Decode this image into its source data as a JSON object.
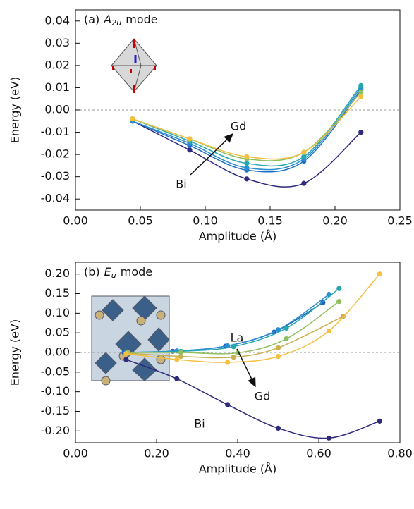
{
  "chart_data": [
    {
      "type": "line",
      "panel": "(a)",
      "mode": "A",
      "mode_sub": "2u",
      "mode_word": "mode",
      "xlabel": "Amplitude (Å)",
      "ylabel": "Energy (eV)",
      "xlim": [
        0,
        0.25
      ],
      "ylim": [
        -0.045,
        0.045
      ],
      "xticks": [
        {
          "value": 0,
          "label": "0.00"
        },
        0.05,
        {
          "value": 0.1,
          "label": "0.10"
        },
        0.15,
        {
          "value": 0.2,
          "label": "0.20"
        },
        0.25
      ],
      "yticks": [
        {
          "value": -0.04,
          "label": "-0.04"
        },
        {
          "value": -0.03,
          "label": "-0.03"
        },
        {
          "value": -0.02,
          "label": "-0.02"
        },
        {
          "value": -0.01,
          "label": "-0.01"
        },
        {
          "value": 0,
          "label": "0.00"
        },
        0.01,
        0.02,
        0.03,
        0.04
      ],
      "zero_line": true,
      "series": [
        {
          "color": "#2e2a7c",
          "x": [
            0.044,
            0.088,
            0.132,
            0.176,
            0.22
          ],
          "values": [
            -0.005,
            -0.018,
            -0.031,
            -0.033,
            -0.01
          ]
        },
        {
          "color": "#1f6fc8",
          "x": [
            0.044,
            0.088,
            0.132,
            0.176,
            0.22
          ],
          "values": [
            -0.005,
            -0.016,
            -0.027,
            -0.023,
            0.009
          ]
        },
        {
          "color": "#2a8fd0",
          "x": [
            0.044,
            0.088,
            0.132,
            0.176,
            0.22
          ],
          "values": [
            -0.005,
            -0.015,
            -0.026,
            -0.022,
            0.01
          ]
        },
        {
          "color": "#26a7b0",
          "x": [
            0.044,
            0.088,
            0.132,
            0.176,
            0.22
          ],
          "values": [
            -0.004,
            -0.014,
            -0.024,
            -0.021,
            0.011
          ]
        },
        {
          "color": "#8fbf60",
          "x": [
            0.044,
            0.088,
            0.132,
            0.176,
            0.22
          ],
          "values": [
            -0.004,
            -0.013,
            -0.022,
            -0.019,
            0.008
          ]
        },
        {
          "color": "#f5c040",
          "x": [
            0.044,
            0.088,
            0.132,
            0.176,
            0.22
          ],
          "values": [
            -0.004,
            -0.013,
            -0.021,
            -0.019,
            0.006
          ]
        }
      ],
      "annotations": [
        "Gd",
        "Bi"
      ]
    },
    {
      "type": "line",
      "panel": "(b)",
      "mode": "E",
      "mode_sub": "u",
      "mode_word": "mode",
      "xlabel": "Amplitude (Å)",
      "ylabel": "Energy (eV)",
      "xlim": [
        0,
        0.8
      ],
      "ylim": [
        -0.23,
        0.23
      ],
      "xticks": [
        {
          "value": 0,
          "label": "0.00"
        },
        {
          "value": 0.2,
          "label": "0.20"
        },
        {
          "value": 0.4,
          "label": "0.40"
        },
        {
          "value": 0.6,
          "label": "0.60"
        },
        {
          "value": 0.8,
          "label": "0.80"
        }
      ],
      "yticks": [
        {
          "value": -0.2,
          "label": "-0.20"
        },
        {
          "value": -0.15,
          "label": "-0.15"
        },
        {
          "value": -0.1,
          "label": "-0.10"
        },
        {
          "value": -0.05,
          "label": "-0.05"
        },
        {
          "value": 0,
          "label": "0.00"
        },
        0.05,
        {
          "value": 0.1,
          "label": "0.10"
        },
        0.15,
        {
          "value": 0.2,
          "label": "0.20"
        }
      ],
      "zero_line": true,
      "series": [
        {
          "color": "#2e2a7c",
          "x": [
            0.125,
            0.25,
            0.375,
            0.5,
            0.625,
            0.75
          ],
          "values": [
            -0.018,
            -0.067,
            -0.133,
            -0.193,
            -0.218,
            -0.175
          ]
        },
        {
          "color": "#1f5fc0",
          "x": [
            0.12,
            0.24,
            0.37,
            0.49,
            0.61
          ],
          "values": [
            0.0,
            0.003,
            0.016,
            0.052,
            0.127
          ]
        },
        {
          "color": "#2a8fd0",
          "x": [
            0.125,
            0.25,
            0.375,
            0.5,
            0.625
          ],
          "values": [
            0.0,
            0.004,
            0.017,
            0.058,
            0.148
          ]
        },
        {
          "color": "#26a7b0",
          "x": [
            0.13,
            0.26,
            0.39,
            0.52,
            0.65
          ],
          "values": [
            0.0,
            0.003,
            0.015,
            0.062,
            0.163
          ]
        },
        {
          "color": "#8fbf60",
          "x": [
            0.13,
            0.26,
            0.4,
            0.52,
            0.65
          ],
          "values": [
            0.0,
            0.0,
            -0.001,
            0.035,
            0.13
          ]
        },
        {
          "color": "#c8b050",
          "x": [
            0.13,
            0.26,
            0.39,
            0.5,
            0.66
          ],
          "values": [
            -0.002,
            -0.01,
            -0.012,
            0.012,
            0.092
          ]
        },
        {
          "color": "#f5c040",
          "x": [
            0.125,
            0.25,
            0.375,
            0.5,
            0.625,
            0.75
          ],
          "values": [
            -0.003,
            -0.018,
            -0.025,
            -0.01,
            0.055,
            0.2
          ]
        }
      ],
      "annotations": [
        "La",
        "Gd",
        "Bi"
      ]
    }
  ]
}
